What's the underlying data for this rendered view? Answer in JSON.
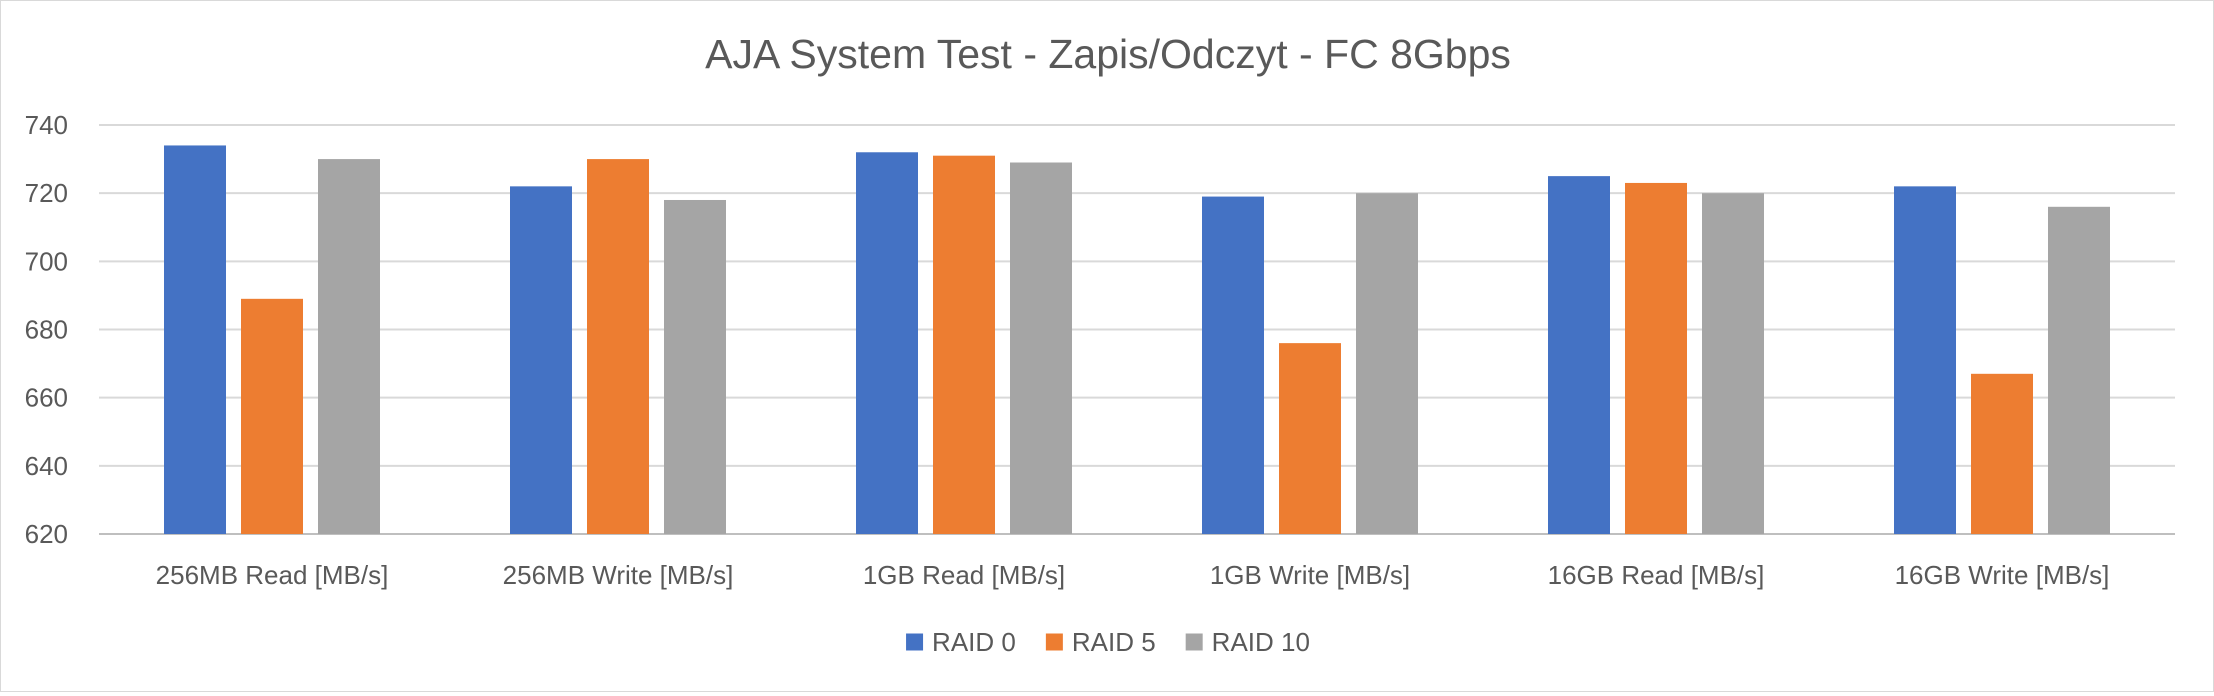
{
  "chart_data": {
    "type": "bar",
    "title": "AJA System Test - Zapis/Odczyt - FC 8Gbps",
    "xlabel": "",
    "ylabel": "",
    "ylim": [
      620,
      740
    ],
    "yticks": [
      620,
      640,
      660,
      680,
      700,
      720,
      740
    ],
    "grid": true,
    "legend_position": "bottom",
    "categories": [
      "256MB Read [MB/s]",
      "256MB Write [MB/s]",
      "1GB Read [MB/s]",
      "1GB Write [MB/s]",
      "16GB Read [MB/s]",
      "16GB Write [MB/s]"
    ],
    "series": [
      {
        "name": "RAID 0",
        "color": "#4472c4",
        "values": [
          734,
          722,
          732,
          719,
          725,
          722
        ]
      },
      {
        "name": "RAID 5",
        "color": "#ed7d31",
        "values": [
          689,
          730,
          731,
          676,
          723,
          667
        ]
      },
      {
        "name": "RAID 10",
        "color": "#a5a5a5",
        "values": [
          730,
          718,
          729,
          720,
          720,
          716
        ]
      }
    ]
  }
}
